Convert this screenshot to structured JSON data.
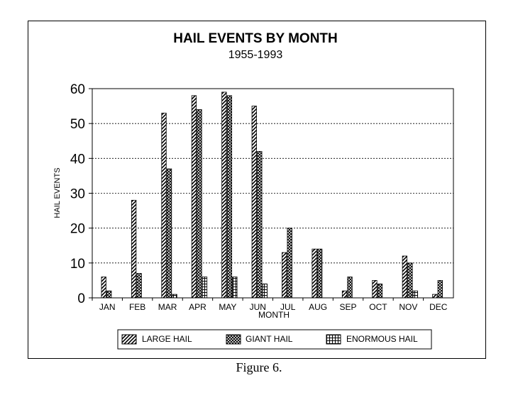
{
  "chart_data": {
    "type": "bar",
    "title": "HAIL EVENTS BY MONTH",
    "subtitle": "1955-1993",
    "xlabel": "MONTH",
    "ylabel": "HAIL EVENTS",
    "categories": [
      "JAN",
      "FEB",
      "MAR",
      "APR",
      "MAY",
      "JUN",
      "JUL",
      "AUG",
      "SEP",
      "OCT",
      "NOV",
      "DEC"
    ],
    "series": [
      {
        "name": "LARGE HAIL",
        "values": [
          6,
          28,
          53,
          58,
          59,
          55,
          13,
          14,
          2,
          5,
          12,
          1
        ]
      },
      {
        "name": "GIANT HAIL",
        "values": [
          2,
          7,
          37,
          54,
          58,
          42,
          20,
          14,
          6,
          4,
          10,
          5
        ]
      },
      {
        "name": "ENORMOUS HAIL",
        "values": [
          0,
          0,
          1,
          6,
          6,
          4,
          0,
          0,
          0,
          0,
          2,
          0
        ]
      }
    ],
    "ylim": [
      0,
      60
    ],
    "yticks": [
      "0",
      "10",
      "20",
      "30",
      "40",
      "50",
      "60"
    ],
    "grid": true,
    "legend_position": "bottom"
  },
  "caption": "Figure 6."
}
